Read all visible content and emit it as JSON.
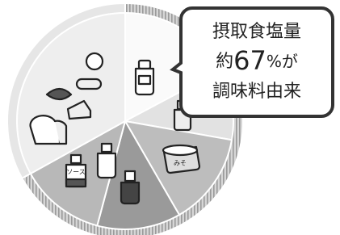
{
  "callout": {
    "line1": "摂取食塩量",
    "line2": {
      "prefix": "約",
      "number": "67",
      "suffix": "%が"
    },
    "line3": "調味料由来"
  },
  "items": {
    "sauce_label": "ソース",
    "miso_label": "みそ"
  }
}
